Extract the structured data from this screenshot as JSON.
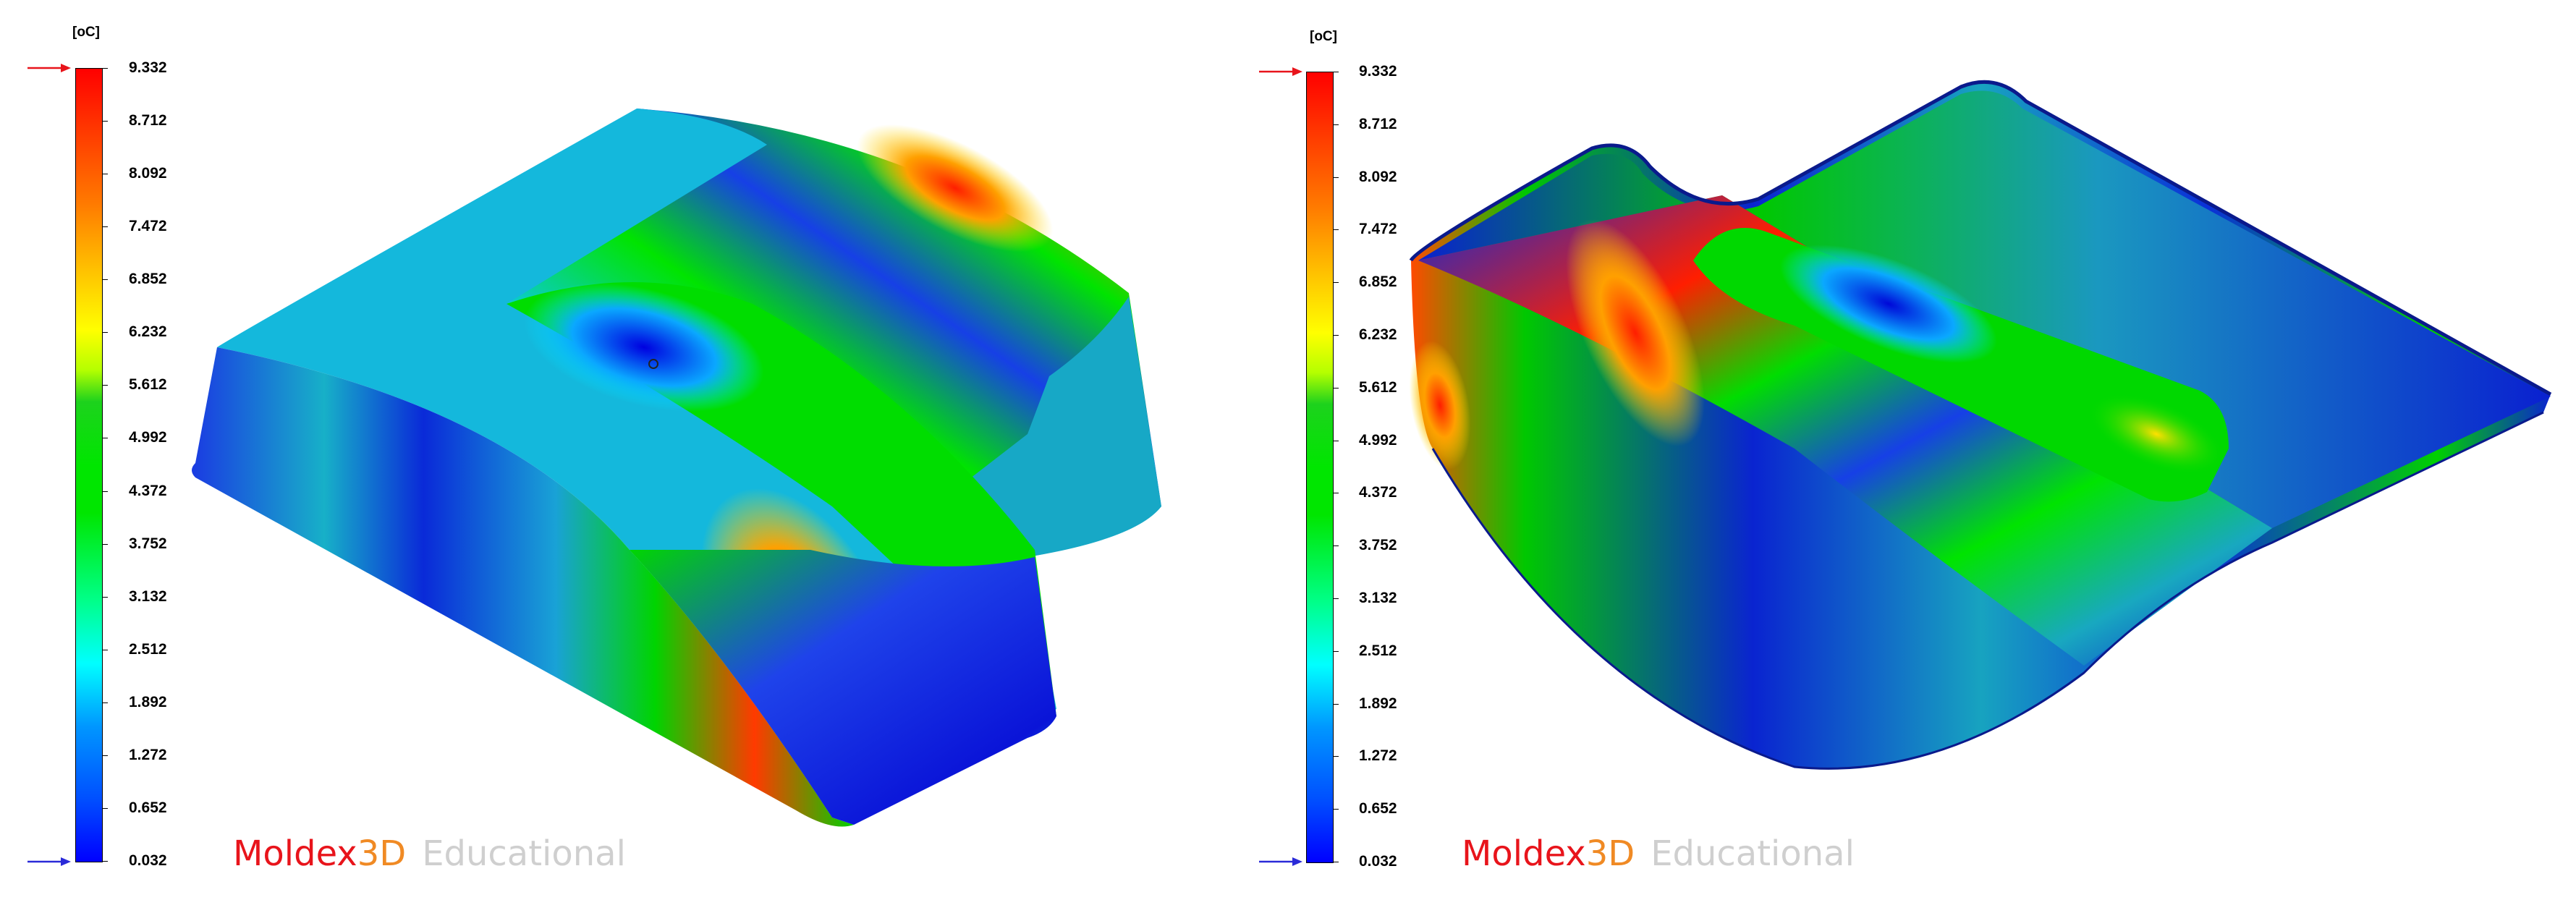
{
  "legend": {
    "unit": "[oC]",
    "ticks": [
      "9.332",
      "8.712",
      "8.092",
      "7.472",
      "6.852",
      "6.232",
      "5.612",
      "4.992",
      "4.372",
      "3.752",
      "3.132",
      "2.512",
      "1.892",
      "1.272",
      "0.652",
      "0.032"
    ],
    "max_marker_color": "#e8141b",
    "min_marker_color": "#2a2ad8"
  },
  "logo": {
    "brand": "Moldex",
    "brand3d": "3D",
    "edition": "Educational"
  },
  "colors": {
    "hot": "#ff1e00",
    "warm": "#ffd200",
    "mid": "#00dd00",
    "cool": "#00e5ff",
    "cold": "#0000e0"
  }
}
